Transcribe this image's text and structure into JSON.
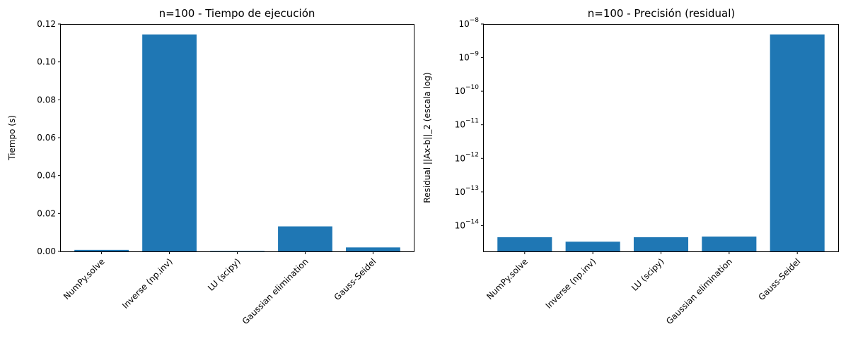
{
  "chart_data": [
    {
      "type": "bar",
      "title": "n=100 - Tiempo de ejecución",
      "xlabel": "",
      "ylabel": "Tiempo (s)",
      "categories": [
        "NumPy.solve",
        "Inverse (np.inv)",
        "LU (scipy)",
        "Gaussian elimination",
        "Gauss-Seidel"
      ],
      "values": [
        0.0008,
        0.1145,
        0.0002,
        0.0132,
        0.0021
      ],
      "yscale": "linear",
      "ylim": [
        0,
        0.12
      ],
      "yticks": [
        0,
        0.02,
        0.04,
        0.06,
        0.08,
        0.1,
        0.12
      ],
      "ytick_labels": [
        "0.00",
        "0.02",
        "0.04",
        "0.06",
        "0.08",
        "0.10",
        "0.12"
      ],
      "bar_color": "#1f77b4",
      "grid": false
    },
    {
      "type": "bar",
      "title": "n=100 - Precisión (residual)",
      "xlabel": "",
      "ylabel": "Residual ||Ax-b||_2 (escala log)",
      "categories": [
        "NumPy.solve",
        "Inverse (np.inv)",
        "LU (scipy)",
        "Gaussian elimination",
        "Gauss-Seidel"
      ],
      "values": [
        4.5e-15,
        3.3e-15,
        4.5e-15,
        4.7e-15,
        4.9e-09
      ],
      "yscale": "log",
      "ylim": [
        1.7e-15,
        1e-08
      ],
      "yticks": [
        1e-14,
        1e-13,
        1e-12,
        1e-11,
        1e-10,
        1e-09,
        1e-08
      ],
      "ytick_labels": [
        "10^-14",
        "10^-13",
        "10^-12",
        "10^-11",
        "10^-10",
        "10^-9",
        "10^-8"
      ],
      "bar_color": "#1f77b4",
      "grid": false
    }
  ]
}
